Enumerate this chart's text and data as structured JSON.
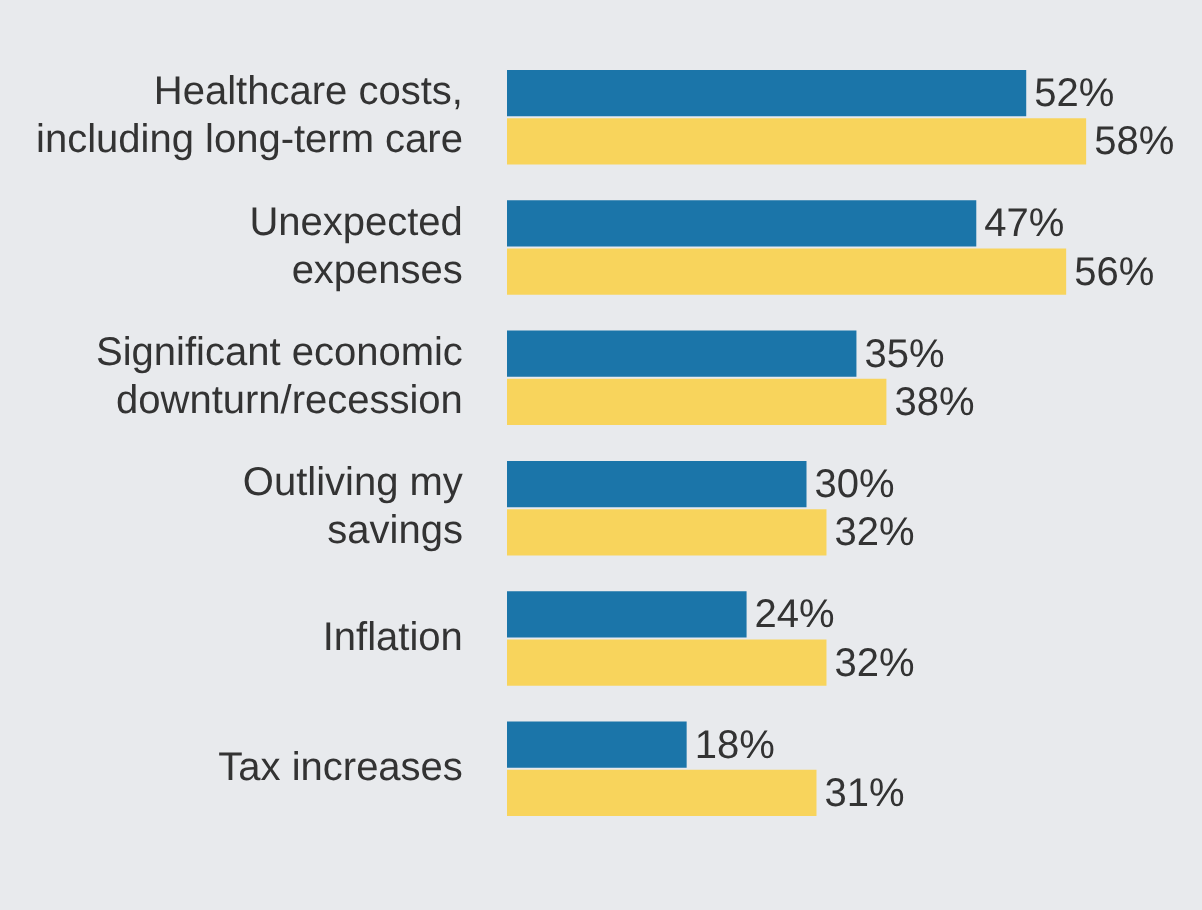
{
  "chart_data": {
    "type": "bar",
    "orientation": "horizontal",
    "categories": [
      "Healthcare costs,\nincluding long-term care",
      "Unexpected\nexpenses",
      "Significant economic\ndownturn/recession",
      "Outliving my\nsavings",
      "Inflation",
      "Tax increases"
    ],
    "series": [
      {
        "color": "#1b75a9",
        "values": [
          52,
          47,
          35,
          30,
          24,
          18
        ],
        "value_labels": [
          "52%",
          "47%",
          "35%",
          "30%",
          "24%",
          "18%"
        ]
      },
      {
        "color": "#f8d45c",
        "values": [
          58,
          56,
          38,
          32,
          32,
          31
        ],
        "value_labels": [
          "58%",
          "56%",
          "38%",
          "32%",
          "32%",
          "31%"
        ]
      }
    ],
    "legend": false
  }
}
